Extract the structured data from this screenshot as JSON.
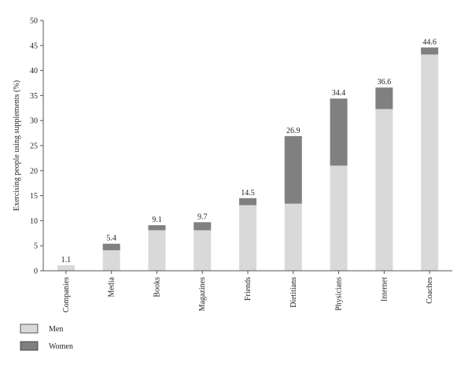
{
  "chart_data": {
    "type": "bar",
    "stacked": true,
    "categories": [
      "Companies",
      "Media",
      "Books",
      "Magazines",
      "Friends",
      "Dietitians",
      "Physicians",
      "Internet",
      "Coaches"
    ],
    "series": [
      {
        "name": "Men",
        "values": [
          1.1,
          4.1,
          8.1,
          8.1,
          13.1,
          13.4,
          21.0,
          32.3,
          43.2
        ],
        "color": "#d9d9d9"
      },
      {
        "name": "Women",
        "values": [
          0.0,
          1.3,
          1.0,
          1.6,
          1.4,
          13.5,
          13.4,
          4.3,
          1.4
        ],
        "color": "#808080"
      }
    ],
    "totals": [
      "1.1",
      "5.4",
      "9.1",
      "9.7",
      "14.5",
      "26.9",
      "34.4",
      "36.6",
      "44.6"
    ],
    "ylabel": "Exercising people using supplements (%)",
    "xlabel": "",
    "ylim": [
      0,
      50
    ],
    "yticks": [
      0,
      5,
      10,
      15,
      20,
      25,
      30,
      35,
      40,
      45,
      50
    ],
    "grid": false,
    "legend": "bottom-left"
  }
}
